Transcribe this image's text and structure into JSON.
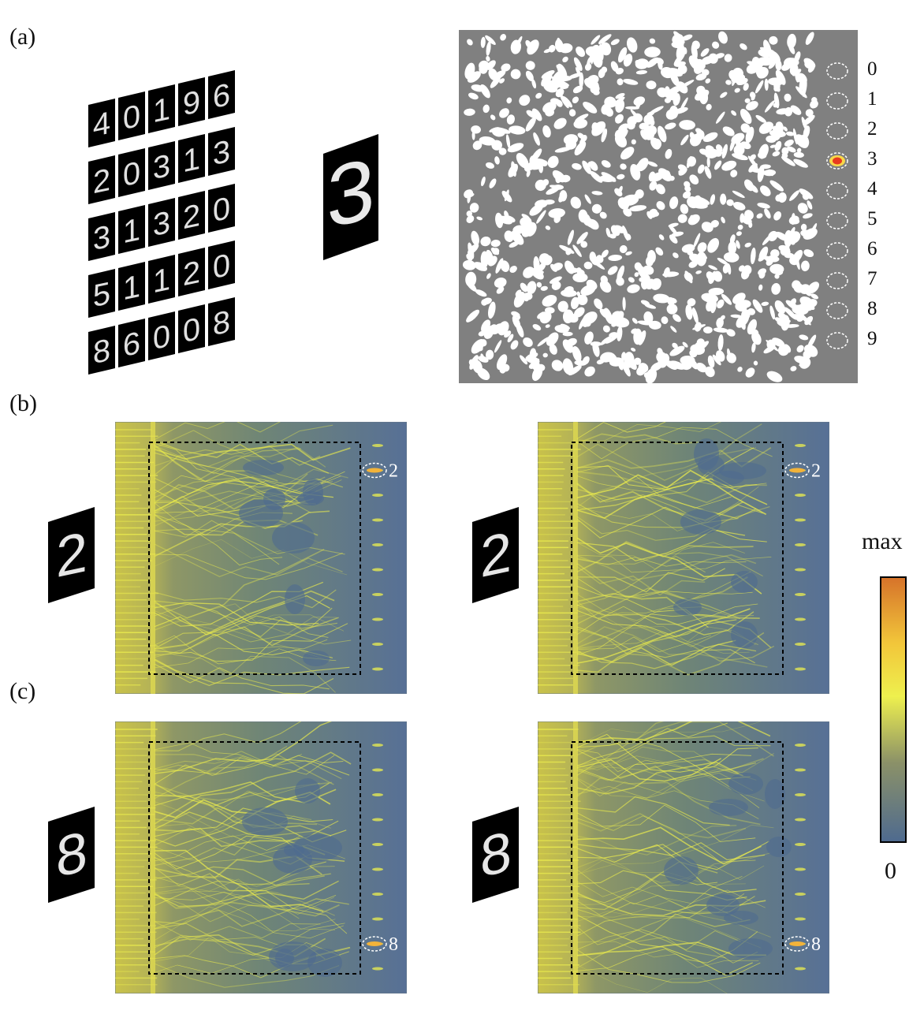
{
  "panels": {
    "a": "(a)",
    "b": "(b)",
    "c": "(c)"
  },
  "mnist_grid": [
    [
      "4",
      "0",
      "1",
      "9",
      "6"
    ],
    [
      "2",
      "0",
      "3",
      "1",
      "3"
    ],
    [
      "3",
      "1",
      "3",
      "2",
      "0"
    ],
    [
      "5",
      "1",
      "1",
      "2",
      "0"
    ],
    [
      "8",
      "6",
      "0",
      "0",
      "8"
    ]
  ],
  "input_digit_a": "3",
  "detector_labels": [
    "0",
    "1",
    "2",
    "3",
    "4",
    "5",
    "6",
    "7",
    "8",
    "9"
  ],
  "active_detector": "3",
  "field_panels": [
    {
      "input": "2",
      "output": "2"
    },
    {
      "input": "2",
      "output": "2"
    },
    {
      "input": "8",
      "output": "8"
    },
    {
      "input": "8",
      "output": "8"
    }
  ],
  "colorbar": {
    "max_label": "max",
    "min_label": "0",
    "colors": [
      "#4e6a8f",
      "#7f8a6a",
      "#e6e84a",
      "#f3ca3a",
      "#d9762a"
    ]
  }
}
